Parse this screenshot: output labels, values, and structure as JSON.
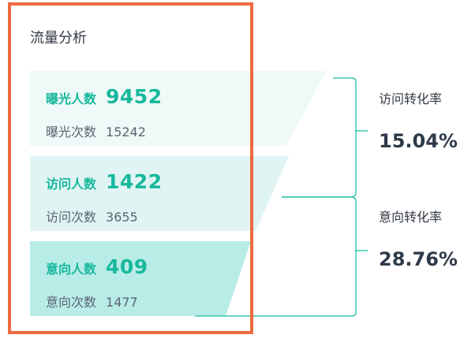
{
  "title": "流量分析",
  "stages": [
    {
      "people_label": "曝光人数",
      "people_value": "9452",
      "times_label": "曝光次数",
      "times_value": "15242"
    },
    {
      "people_label": "访问人数",
      "people_value": "1422",
      "times_label": "访问次数",
      "times_value": "3655"
    },
    {
      "people_label": "意向人数",
      "people_value": "409",
      "times_label": "意向次数",
      "times_value": "1477"
    }
  ],
  "rates": [
    {
      "label": "访问转化率",
      "value": "15.04%"
    },
    {
      "label": "意向转化率",
      "value": "28.76%"
    }
  ],
  "colors": {
    "accent": "#17b89c",
    "stage_1_fill": "#eef9f8",
    "stage_2_fill": "#dff4f3",
    "stage_3_fill": "#b8ece7",
    "connector": "#3cc7ad",
    "highlight_border": "#ee6a3f",
    "rate_text": "#2e3a4a"
  }
}
